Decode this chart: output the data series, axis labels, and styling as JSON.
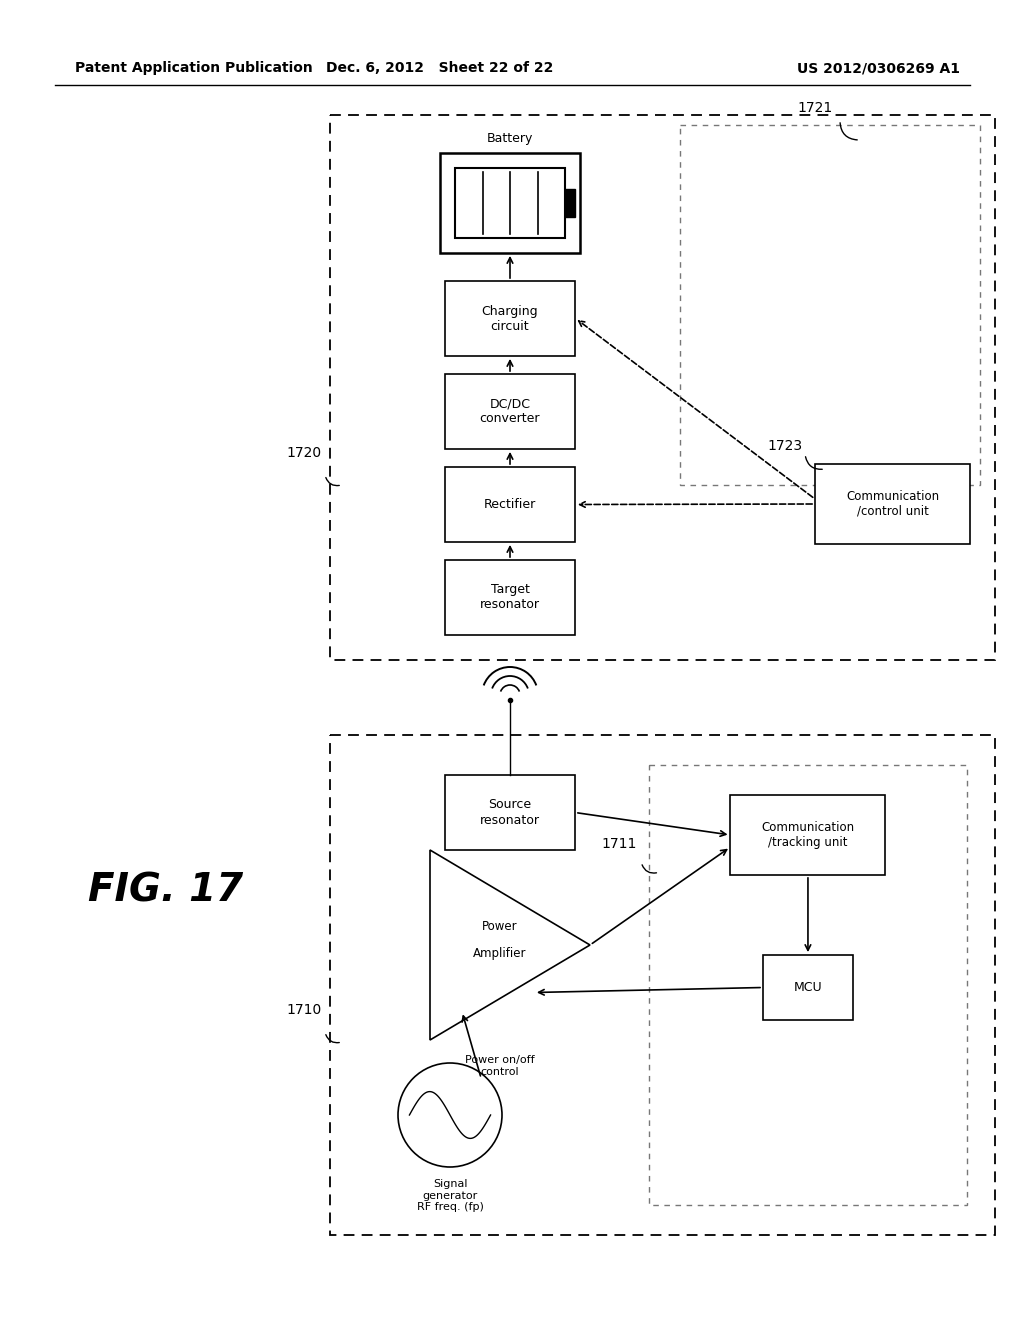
{
  "bg_color": "#ffffff",
  "header_left": "Patent Application Publication",
  "header_mid": "Dec. 6, 2012   Sheet 22 of 22",
  "header_right": "US 2012/0306269 A1",
  "fig_label": "FIG. 17"
}
